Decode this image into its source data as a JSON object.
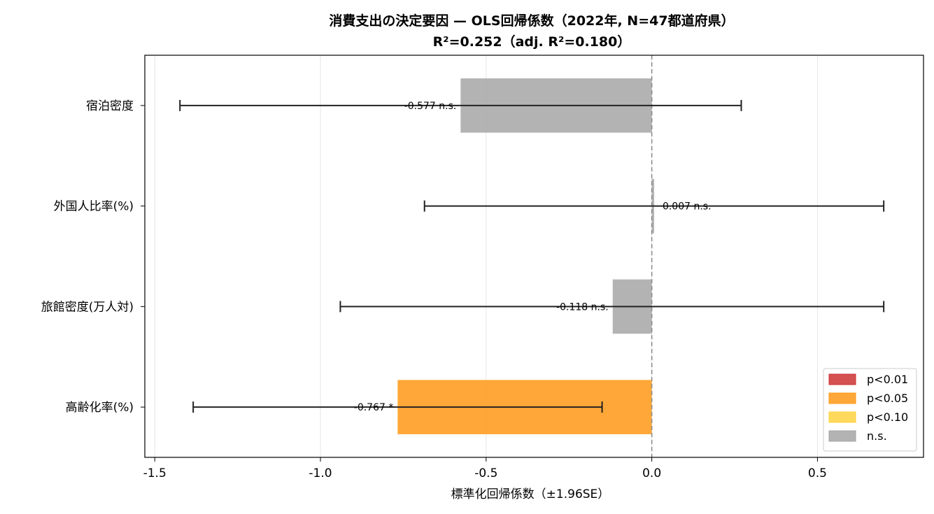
{
  "chart_data": {
    "type": "bar",
    "orientation": "horizontal",
    "title": "消費支出の決定要因 — OLS回帰係数（2022年, N=47都道府県）",
    "subtitle": "R²=0.252（adj. R²=0.180）",
    "xlabel": "標準化回帰係数（±1.96SE）",
    "ylabel": "",
    "xlim": [
      -1.53,
      0.82
    ],
    "xticks": [
      -1.5,
      -1.0,
      -0.5,
      0.0,
      0.5
    ],
    "xtick_labels": [
      "-1.5",
      "-1.0",
      "-0.5",
      "0.0",
      "0.5"
    ],
    "grid": "x",
    "reference_line": 0,
    "categories": [
      "宿泊密度",
      "外国人比率(%)",
      "旅館密度(万人対)",
      "高齢化率(%)"
    ],
    "values": [
      -0.577,
      0.007,
      -0.118,
      -0.767
    ],
    "ci_low": [
      -1.424,
      -0.686,
      -0.94,
      -1.384
    ],
    "ci_high": [
      0.27,
      0.7,
      0.7,
      -0.15
    ],
    "significance": [
      "ns",
      "ns",
      "ns",
      "p05"
    ],
    "data_labels": [
      "-0.577 n.s.",
      "0.007 n.s.",
      "-0.118 n.s.",
      "-0.767 *"
    ],
    "legend": {
      "placement": "lower-right",
      "entries": [
        {
          "key": "p01",
          "label": "p<0.01",
          "color": "#cc3333"
        },
        {
          "key": "p05",
          "label": "p<0.05",
          "color": "#ff9916"
        },
        {
          "key": "p10",
          "label": "p<0.10",
          "color": "#ffd23f"
        },
        {
          "key": "ns",
          "label": "n.s.",
          "color": "#a6a6a6"
        }
      ]
    }
  }
}
